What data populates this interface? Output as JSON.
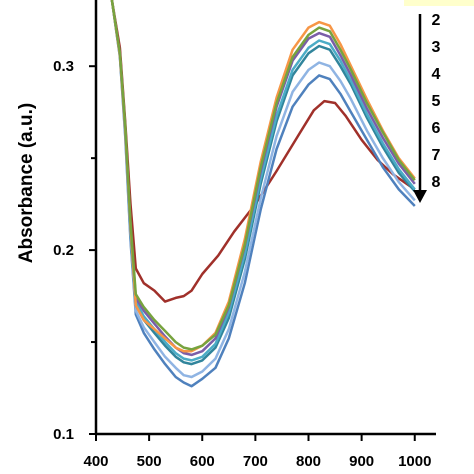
{
  "chart_data": {
    "type": "line",
    "title": "",
    "xlabel": "",
    "ylabel": "Absorbance (a.u.)",
    "xlim": [
      400,
      1040
    ],
    "ylim": [
      0.1,
      0.336
    ],
    "xticks": [
      400,
      500,
      600,
      700,
      800,
      900,
      1000
    ],
    "xtick_labels": [
      "400",
      "500",
      "600",
      "700",
      "800",
      "900",
      "1000"
    ],
    "yticks": [
      0.1,
      0.2,
      0.3
    ],
    "ytick_labels": [
      "0.1",
      "0.2",
      "0.3"
    ],
    "grid": false,
    "legend": {
      "placement": "top-right",
      "entries": [
        "2",
        "3",
        "4",
        "5",
        "6",
        "7",
        "8"
      ],
      "arrow_direction": "down",
      "background": "#ffffcc"
    },
    "series": [
      {
        "color": "#a0302a",
        "points": [
          [
            430,
            0.336
          ],
          [
            445,
            0.31
          ],
          [
            455,
            0.27
          ],
          [
            465,
            0.225
          ],
          [
            475,
            0.19
          ],
          [
            490,
            0.182
          ],
          [
            510,
            0.178
          ],
          [
            530,
            0.172
          ],
          [
            550,
            0.174
          ],
          [
            565,
            0.175
          ],
          [
            580,
            0.178
          ],
          [
            600,
            0.187
          ],
          [
            630,
            0.197
          ],
          [
            660,
            0.21
          ],
          [
            700,
            0.225
          ],
          [
            740,
            0.243
          ],
          [
            780,
            0.262
          ],
          [
            810,
            0.276
          ],
          [
            830,
            0.281
          ],
          [
            850,
            0.28
          ],
          [
            870,
            0.273
          ],
          [
            900,
            0.26
          ],
          [
            930,
            0.249
          ],
          [
            960,
            0.241
          ],
          [
            990,
            0.235
          ],
          [
            1000,
            0.233
          ]
        ]
      },
      {
        "color": "#4f81bd",
        "points": [
          [
            430,
            0.336
          ],
          [
            445,
            0.305
          ],
          [
            455,
            0.262
          ],
          [
            465,
            0.205
          ],
          [
            475,
            0.165
          ],
          [
            490,
            0.155
          ],
          [
            510,
            0.146
          ],
          [
            530,
            0.138
          ],
          [
            550,
            0.131
          ],
          [
            565,
            0.128
          ],
          [
            580,
            0.126
          ],
          [
            600,
            0.13
          ],
          [
            625,
            0.136
          ],
          [
            650,
            0.152
          ],
          [
            680,
            0.182
          ],
          [
            710,
            0.222
          ],
          [
            740,
            0.255
          ],
          [
            770,
            0.278
          ],
          [
            800,
            0.29
          ],
          [
            820,
            0.295
          ],
          [
            840,
            0.293
          ],
          [
            860,
            0.285
          ],
          [
            880,
            0.275
          ],
          [
            910,
            0.26
          ],
          [
            940,
            0.245
          ],
          [
            970,
            0.233
          ],
          [
            1000,
            0.224
          ]
        ]
      },
      {
        "color": "#8fb4e3",
        "points": [
          [
            430,
            0.336
          ],
          [
            445,
            0.305
          ],
          [
            455,
            0.263
          ],
          [
            465,
            0.207
          ],
          [
            475,
            0.167
          ],
          [
            490,
            0.158
          ],
          [
            510,
            0.15
          ],
          [
            530,
            0.142
          ],
          [
            550,
            0.136
          ],
          [
            565,
            0.132
          ],
          [
            580,
            0.131
          ],
          [
            600,
            0.134
          ],
          [
            625,
            0.141
          ],
          [
            650,
            0.157
          ],
          [
            680,
            0.188
          ],
          [
            710,
            0.228
          ],
          [
            740,
            0.262
          ],
          [
            770,
            0.286
          ],
          [
            800,
            0.298
          ],
          [
            820,
            0.302
          ],
          [
            840,
            0.3
          ],
          [
            860,
            0.292
          ],
          [
            880,
            0.282
          ],
          [
            910,
            0.265
          ],
          [
            940,
            0.25
          ],
          [
            970,
            0.237
          ],
          [
            1000,
            0.227
          ]
        ]
      },
      {
        "color": "#31859c",
        "points": [
          [
            430,
            0.336
          ],
          [
            445,
            0.306
          ],
          [
            455,
            0.265
          ],
          [
            465,
            0.21
          ],
          [
            475,
            0.17
          ],
          [
            490,
            0.162
          ],
          [
            510,
            0.155
          ],
          [
            530,
            0.148
          ],
          [
            550,
            0.142
          ],
          [
            565,
            0.139
          ],
          [
            580,
            0.138
          ],
          [
            600,
            0.14
          ],
          [
            625,
            0.147
          ],
          [
            650,
            0.163
          ],
          [
            680,
            0.195
          ],
          [
            710,
            0.236
          ],
          [
            740,
            0.27
          ],
          [
            770,
            0.295
          ],
          [
            800,
            0.307
          ],
          [
            820,
            0.311
          ],
          [
            840,
            0.309
          ],
          [
            860,
            0.3
          ],
          [
            880,
            0.29
          ],
          [
            910,
            0.272
          ],
          [
            940,
            0.256
          ],
          [
            970,
            0.242
          ],
          [
            1000,
            0.232
          ]
        ]
      },
      {
        "color": "#4bacc6",
        "points": [
          [
            430,
            0.336
          ],
          [
            445,
            0.306
          ],
          [
            455,
            0.266
          ],
          [
            465,
            0.212
          ],
          [
            475,
            0.172
          ],
          [
            490,
            0.164
          ],
          [
            510,
            0.157
          ],
          [
            530,
            0.15
          ],
          [
            550,
            0.144
          ],
          [
            565,
            0.141
          ],
          [
            580,
            0.14
          ],
          [
            600,
            0.142
          ],
          [
            625,
            0.149
          ],
          [
            650,
            0.166
          ],
          [
            680,
            0.198
          ],
          [
            710,
            0.239
          ],
          [
            740,
            0.273
          ],
          [
            770,
            0.298
          ],
          [
            800,
            0.31
          ],
          [
            820,
            0.314
          ],
          [
            840,
            0.312
          ],
          [
            860,
            0.303
          ],
          [
            880,
            0.292
          ],
          [
            910,
            0.274
          ],
          [
            940,
            0.258
          ],
          [
            970,
            0.244
          ],
          [
            1000,
            0.233
          ]
        ]
      },
      {
        "color": "#7a5ea8",
        "points": [
          [
            430,
            0.336
          ],
          [
            445,
            0.307
          ],
          [
            455,
            0.267
          ],
          [
            465,
            0.214
          ],
          [
            475,
            0.174
          ],
          [
            490,
            0.167
          ],
          [
            510,
            0.16
          ],
          [
            530,
            0.153
          ],
          [
            550,
            0.147
          ],
          [
            565,
            0.144
          ],
          [
            580,
            0.143
          ],
          [
            600,
            0.145
          ],
          [
            625,
            0.152
          ],
          [
            650,
            0.169
          ],
          [
            680,
            0.202
          ],
          [
            710,
            0.243
          ],
          [
            740,
            0.278
          ],
          [
            770,
            0.303
          ],
          [
            800,
            0.315
          ],
          [
            820,
            0.318
          ],
          [
            840,
            0.316
          ],
          [
            860,
            0.306
          ],
          [
            880,
            0.295
          ],
          [
            910,
            0.277
          ],
          [
            940,
            0.261
          ],
          [
            970,
            0.247
          ],
          [
            1000,
            0.236
          ]
        ]
      },
      {
        "color": "#f79646",
        "points": [
          [
            430,
            0.336
          ],
          [
            445,
            0.306
          ],
          [
            455,
            0.266
          ],
          [
            465,
            0.213
          ],
          [
            475,
            0.17
          ],
          [
            490,
            0.162
          ],
          [
            510,
            0.157
          ],
          [
            530,
            0.152
          ],
          [
            550,
            0.147
          ],
          [
            565,
            0.145
          ],
          [
            580,
            0.145
          ],
          [
            600,
            0.148
          ],
          [
            625,
            0.155
          ],
          [
            650,
            0.172
          ],
          [
            680,
            0.206
          ],
          [
            710,
            0.248
          ],
          [
            740,
            0.283
          ],
          [
            770,
            0.309
          ],
          [
            800,
            0.321
          ],
          [
            820,
            0.324
          ],
          [
            840,
            0.322
          ],
          [
            860,
            0.312
          ],
          [
            880,
            0.3
          ],
          [
            910,
            0.282
          ],
          [
            940,
            0.265
          ],
          [
            970,
            0.25
          ],
          [
            1000,
            0.239
          ]
        ]
      },
      {
        "color": "#77a33e",
        "points": [
          [
            430,
            0.336
          ],
          [
            445,
            0.307
          ],
          [
            455,
            0.268
          ],
          [
            465,
            0.215
          ],
          [
            475,
            0.176
          ],
          [
            490,
            0.169
          ],
          [
            510,
            0.162
          ],
          [
            530,
            0.156
          ],
          [
            550,
            0.15
          ],
          [
            565,
            0.147
          ],
          [
            580,
            0.146
          ],
          [
            600,
            0.148
          ],
          [
            625,
            0.154
          ],
          [
            650,
            0.17
          ],
          [
            680,
            0.203
          ],
          [
            710,
            0.245
          ],
          [
            740,
            0.28
          ],
          [
            770,
            0.305
          ],
          [
            800,
            0.317
          ],
          [
            820,
            0.321
          ],
          [
            840,
            0.319
          ],
          [
            860,
            0.309
          ],
          [
            880,
            0.298
          ],
          [
            910,
            0.28
          ],
          [
            940,
            0.264
          ],
          [
            970,
            0.249
          ],
          [
            1000,
            0.238
          ]
        ]
      }
    ]
  }
}
